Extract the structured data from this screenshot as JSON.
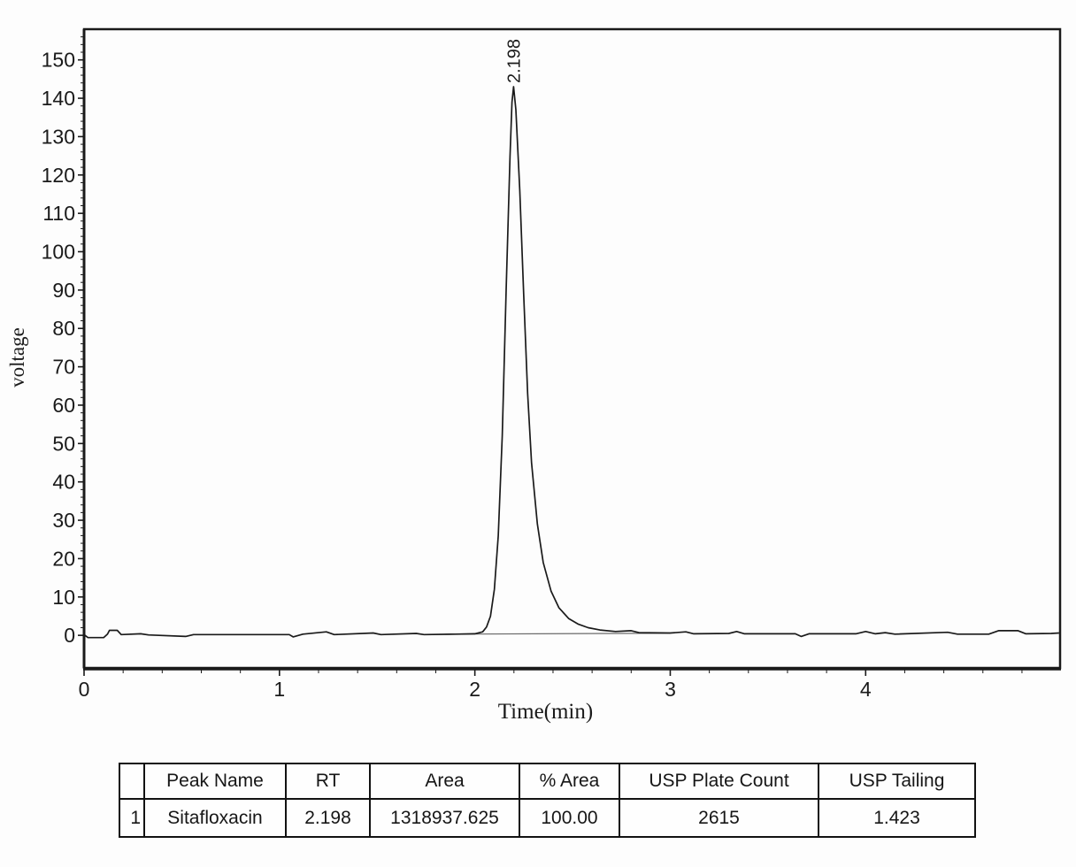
{
  "figure": {
    "background": "#fdfdfd",
    "line_color": "#1a1a1a",
    "integration_line_color": "#6a6a6a"
  },
  "chart_data": {
    "type": "line",
    "title": "",
    "xlabel": "Time(min)",
    "ylabel": "voltage",
    "grid": false,
    "legend": null,
    "xlim": [
      0,
      4.995
    ],
    "ylim": [
      -8.5,
      158
    ],
    "x_ticks": [
      0,
      1,
      2,
      3,
      4
    ],
    "x_minor_step": 0.2,
    "y_ticks": [
      0,
      10,
      20,
      30,
      40,
      50,
      60,
      70,
      80,
      90,
      100,
      110,
      120,
      130,
      140,
      150
    ],
    "y_minor_step": 2,
    "peaks": [
      {
        "label": "2.198",
        "rt": 2.198,
        "apex_value": 143
      }
    ],
    "integration_baseline": {
      "x1": 1.85,
      "y1": 0.3,
      "x2": 3.0,
      "y2": 0.55
    },
    "trace": [
      [
        0.0,
        0.2
      ],
      [
        0.02,
        -0.6
      ],
      [
        0.1,
        -0.6
      ],
      [
        0.12,
        0.3
      ],
      [
        0.13,
        1.3
      ],
      [
        0.17,
        1.3
      ],
      [
        0.19,
        0.2
      ],
      [
        0.29,
        0.4
      ],
      [
        0.33,
        0.1
      ],
      [
        0.52,
        -0.3
      ],
      [
        0.56,
        0.2
      ],
      [
        1.05,
        0.2
      ],
      [
        1.07,
        -0.4
      ],
      [
        1.12,
        0.3
      ],
      [
        1.24,
        0.9
      ],
      [
        1.28,
        0.2
      ],
      [
        1.48,
        0.6
      ],
      [
        1.52,
        0.2
      ],
      [
        1.7,
        0.5
      ],
      [
        1.74,
        0.2
      ],
      [
        1.9,
        0.3
      ],
      [
        2.0,
        0.4
      ],
      [
        2.04,
        0.9
      ],
      [
        2.06,
        2.2
      ],
      [
        2.08,
        5
      ],
      [
        2.1,
        12
      ],
      [
        2.12,
        26
      ],
      [
        2.14,
        52
      ],
      [
        2.16,
        90
      ],
      [
        2.18,
        125
      ],
      [
        2.19,
        139
      ],
      [
        2.198,
        143
      ],
      [
        2.21,
        137
      ],
      [
        2.23,
        116
      ],
      [
        2.25,
        89
      ],
      [
        2.27,
        63
      ],
      [
        2.29,
        45
      ],
      [
        2.32,
        29
      ],
      [
        2.35,
        19
      ],
      [
        2.39,
        11.5
      ],
      [
        2.43,
        7.2
      ],
      [
        2.48,
        4.4
      ],
      [
        2.53,
        2.9
      ],
      [
        2.58,
        2.0
      ],
      [
        2.64,
        1.4
      ],
      [
        2.72,
        1.0
      ],
      [
        2.8,
        1.2
      ],
      [
        2.84,
        0.7
      ],
      [
        3.0,
        0.6
      ],
      [
        3.08,
        0.9
      ],
      [
        3.12,
        0.4
      ],
      [
        3.3,
        0.5
      ],
      [
        3.34,
        1.0
      ],
      [
        3.38,
        0.4
      ],
      [
        3.64,
        0.4
      ],
      [
        3.67,
        -0.3
      ],
      [
        3.71,
        0.4
      ],
      [
        3.95,
        0.4
      ],
      [
        4.0,
        1.0
      ],
      [
        4.05,
        0.4
      ],
      [
        4.1,
        0.7
      ],
      [
        4.15,
        0.3
      ],
      [
        4.42,
        0.8
      ],
      [
        4.47,
        0.3
      ],
      [
        4.63,
        0.3
      ],
      [
        4.68,
        1.2
      ],
      [
        4.78,
        1.2
      ],
      [
        4.82,
        0.4
      ],
      [
        4.95,
        0.5
      ],
      [
        4.99,
        0.6
      ]
    ]
  },
  "table": {
    "headers": [
      "",
      "Peak Name",
      "RT",
      "Area",
      "% Area",
      "USP Plate Count",
      "USP Tailing"
    ],
    "column_keys": [
      "index",
      "peak-name",
      "rt",
      "area",
      "pct-area",
      "usp-plate-count",
      "usp-tailing"
    ],
    "rows": [
      [
        "1",
        "Sitafloxacin",
        "2.198",
        "1318937.625",
        "100.00",
        "2615",
        "1.423"
      ]
    ]
  }
}
